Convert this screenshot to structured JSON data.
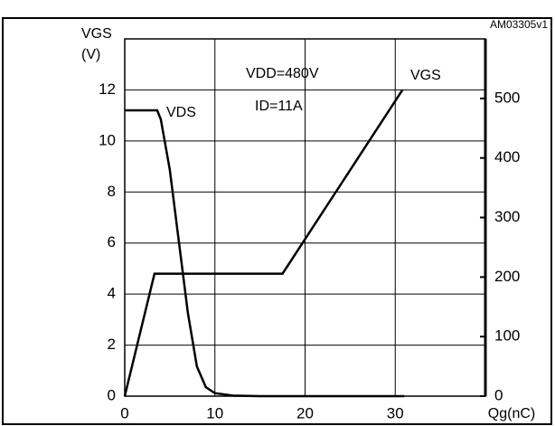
{
  "chart_data": {
    "type": "line",
    "code": "AM03305v1",
    "y_label": "VGS",
    "y_unit": "(V)",
    "x_label": "Qg(nC)",
    "annotations": [
      "VDD=480V",
      "ID=11A"
    ],
    "xlim": [
      0,
      40
    ],
    "xticks": [
      0,
      10,
      20,
      30
    ],
    "ylim": [
      0,
      14
    ],
    "yticks": [
      0,
      2,
      4,
      6,
      8,
      10,
      12
    ],
    "y2lim": [
      0,
      600
    ],
    "y2ticks": [
      0,
      100,
      200,
      300,
      400,
      500
    ],
    "grid": true,
    "series": [
      {
        "name": "VGS",
        "color": "#000000",
        "x": [
          0,
          3.3,
          17.5,
          30.8
        ],
        "values": [
          0,
          4.8,
          4.8,
          12
        ]
      },
      {
        "name": "VDS",
        "color": "#000000",
        "axis": "y2",
        "x": [
          0,
          3.6,
          4,
          5,
          6,
          7,
          8,
          9,
          10,
          12,
          15,
          31
        ],
        "values": [
          480,
          480,
          465,
          380,
          260,
          140,
          50,
          15,
          5,
          1,
          0,
          0
        ]
      }
    ]
  }
}
